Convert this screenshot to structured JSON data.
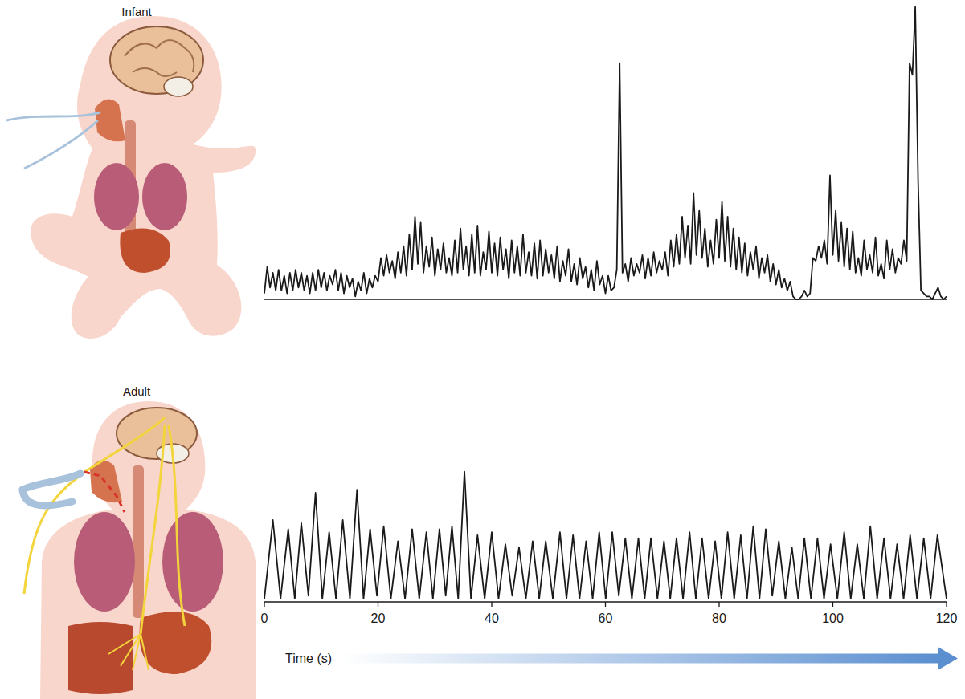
{
  "chart_data": [
    {
      "type": "line",
      "title": "Infant",
      "color": "#1a1a1a",
      "tick_labels": false,
      "xlim": [
        0,
        120
      ],
      "ylim": [
        0,
        100
      ],
      "x": [
        0,
        0.5,
        1,
        1.5,
        2,
        2.5,
        3,
        3.5,
        4,
        4.5,
        5,
        5.5,
        6,
        6.5,
        7,
        7.5,
        8,
        8.5,
        9,
        9.5,
        10,
        10.5,
        11,
        11.5,
        12,
        12.5,
        13,
        13.5,
        14,
        14.5,
        15,
        15.5,
        16,
        16.5,
        17,
        17.5,
        18,
        18.5,
        19,
        19.5,
        20,
        20.5,
        21,
        21.5,
        22,
        22.5,
        23,
        23.5,
        24,
        24.5,
        25,
        25.5,
        26,
        26.5,
        27,
        27.5,
        28,
        28.5,
        29,
        29.5,
        30,
        30.5,
        31,
        31.5,
        32,
        32.5,
        33,
        33.5,
        34,
        34.5,
        35,
        35.5,
        36,
        36.5,
        37,
        37.5,
        38,
        38.5,
        39,
        39.5,
        40,
        40.5,
        41,
        41.5,
        42,
        42.5,
        43,
        43.5,
        44,
        44.5,
        45,
        45.5,
        46,
        46.5,
        47,
        47.5,
        48,
        48.5,
        49,
        49.5,
        50,
        50.5,
        51,
        51.5,
        52,
        52.5,
        53,
        53.5,
        54,
        54.5,
        55,
        55.5,
        56,
        56.5,
        57,
        57.5,
        58,
        58.5,
        59,
        59.5,
        60,
        60.5,
        61,
        61.5,
        62,
        62.5,
        63,
        63.5,
        64,
        64.5,
        65,
        65.5,
        66,
        66.5,
        67,
        67.5,
        68,
        68.5,
        69,
        69.5,
        70,
        70.5,
        71,
        71.5,
        72,
        72.5,
        73,
        73.5,
        74,
        74.5,
        75,
        75.5,
        76,
        76.5,
        77,
        77.5,
        78,
        78.5,
        79,
        79.5,
        80,
        80.5,
        81,
        81.5,
        82,
        82.5,
        83,
        83.5,
        84,
        84.5,
        85,
        85.5,
        86,
        86.5,
        87,
        87.5,
        88,
        88.5,
        89,
        89.5,
        90,
        90.5,
        91,
        91.5,
        92,
        92.5,
        93,
        93.5,
        94,
        94.5,
        95,
        95.5,
        96,
        96.5,
        97,
        97.5,
        98,
        98.5,
        99,
        99.5,
        100,
        100.5,
        101,
        101.5,
        102,
        102.5,
        103,
        103.5,
        104,
        104.5,
        105,
        105.5,
        106,
        106.5,
        107,
        107.5,
        108,
        108.5,
        109,
        109.5,
        110,
        110.5,
        111,
        111.5,
        112,
        112.5,
        113,
        113.5,
        114,
        114.5,
        115,
        115.5,
        116,
        116.5,
        117,
        117.5,
        118,
        118.5,
        119,
        119.5,
        120
      ],
      "values": [
        2,
        11,
        4,
        9,
        3,
        10,
        3,
        8,
        2,
        9,
        3,
        10,
        4,
        9,
        3,
        8,
        2,
        9,
        3,
        10,
        4,
        9,
        3,
        8,
        5,
        10,
        3,
        9,
        2,
        8,
        4,
        7,
        1,
        6,
        3,
        9,
        2,
        7,
        4,
        8,
        6,
        14,
        8,
        15,
        9,
        13,
        7,
        16,
        9,
        18,
        8,
        22,
        10,
        28,
        12,
        26,
        9,
        18,
        11,
        21,
        8,
        17,
        10,
        19,
        9,
        14,
        8,
        20,
        9,
        24,
        10,
        18,
        8,
        22,
        9,
        25,
        8,
        16,
        10,
        23,
        9,
        19,
        8,
        21,
        10,
        17,
        7,
        20,
        9,
        18,
        8,
        22,
        9,
        16,
        8,
        19,
        7,
        20,
        8,
        17,
        9,
        15,
        7,
        18,
        6,
        13,
        8,
        17,
        6,
        12,
        5,
        14,
        7,
        11,
        4,
        10,
        3,
        13,
        5,
        8,
        2,
        8,
        3,
        4,
        10,
        80,
        9,
        12,
        6,
        14,
        8,
        12,
        9,
        15,
        7,
        14,
        8,
        16,
        9,
        13,
        10,
        16,
        8,
        20,
        11,
        22,
        12,
        28,
        14,
        25,
        12,
        36,
        15,
        30,
        14,
        24,
        11,
        20,
        12,
        27,
        14,
        33,
        13,
        28,
        11,
        24,
        10,
        21,
        9,
        19,
        8,
        16,
        10,
        18,
        7,
        14,
        9,
        15,
        6,
        12,
        5,
        10,
        4,
        7,
        3,
        6,
        1,
        0,
        0,
        1,
        3,
        1,
        2,
        14,
        13,
        18,
        14,
        20,
        12,
        42,
        15,
        30,
        13,
        26,
        11,
        24,
        10,
        23,
        9,
        14,
        8,
        20,
        10,
        15,
        9,
        21,
        8,
        12,
        7,
        20,
        10,
        17,
        9,
        14,
        12,
        20,
        13,
        80,
        76,
        99,
        40,
        3,
        2,
        1,
        1,
        0,
        2,
        4,
        1,
        0,
        1
      ]
    },
    {
      "type": "line",
      "title": "Adult",
      "color": "#1a1a1a",
      "tick_labels": "x",
      "xlabel": "Time (s)",
      "xlim": [
        0,
        120
      ],
      "ylim": [
        0,
        45
      ],
      "xticks": [
        0,
        20,
        40,
        60,
        80,
        100,
        120
      ],
      "x": [
        0,
        1.5,
        2.85,
        4.2,
        5.35,
        6.5,
        7.75,
        9.0,
        10.2,
        11.4,
        12.6,
        13.8,
        15.05,
        16.3,
        17.45,
        18.6,
        19.8,
        21.0,
        22.25,
        23.5,
        24.75,
        26.0,
        27.25,
        28.5,
        29.65,
        30.8,
        31.9,
        33.0,
        34.1,
        35.2,
        36.35,
        37.5,
        38.75,
        40.0,
        41.2,
        42.4,
        43.6,
        44.8,
        46.0,
        47.2,
        48.35,
        49.5,
        50.75,
        52.0,
        53.15,
        54.3,
        55.45,
        56.6,
        57.75,
        58.9,
        60.05,
        61.2,
        62.35,
        63.5,
        64.65,
        65.8,
        66.9,
        68.0,
        69.15,
        70.3,
        71.4,
        72.5,
        73.65,
        74.8,
        75.9,
        77.0,
        78.15,
        79.3,
        80.4,
        81.5,
        82.65,
        83.8,
        84.9,
        86.0,
        87.1,
        88.2,
        89.35,
        90.5,
        91.65,
        92.8,
        93.9,
        95.0,
        96.15,
        97.3,
        98.45,
        99.6,
        100.8,
        102.0,
        103.15,
        104.3,
        105.45,
        106.6,
        107.8,
        109.0,
        110.15,
        111.3,
        112.45,
        113.6,
        114.8,
        116.0,
        117.2,
        118.4,
        120
      ],
      "values": [
        1,
        27,
        1,
        24,
        1,
        26,
        2,
        36,
        1,
        23,
        1,
        27,
        1,
        37,
        1,
        24,
        2,
        25,
        1,
        20,
        1,
        24,
        1,
        23,
        1,
        24,
        2,
        25,
        1,
        43,
        1,
        22,
        1,
        23,
        1,
        19,
        2,
        18,
        1,
        20,
        1,
        20,
        1,
        23,
        1,
        22,
        1,
        20,
        1,
        23,
        1,
        23,
        2,
        21,
        1,
        21,
        1,
        21,
        1,
        20,
        1,
        21,
        1,
        23,
        1,
        21,
        1,
        20,
        1,
        23,
        1,
        22,
        1,
        25,
        1,
        24,
        2,
        20,
        1,
        18,
        1,
        21,
        1,
        21,
        1,
        19,
        1,
        23,
        1,
        19,
        1,
        25,
        1,
        21,
        1,
        19,
        1,
        22,
        1,
        21,
        1,
        22,
        1
      ]
    }
  ]
}
